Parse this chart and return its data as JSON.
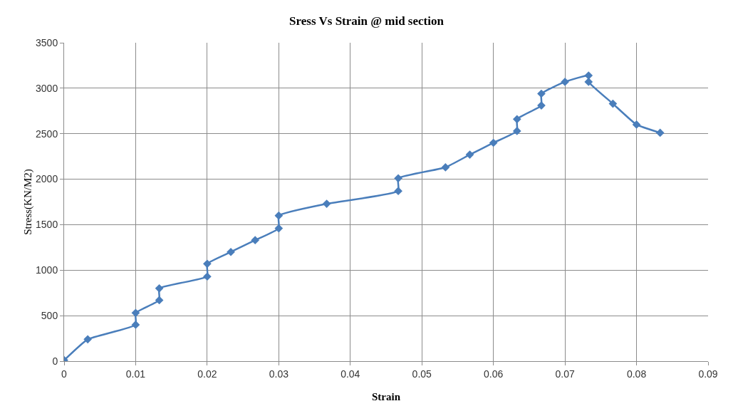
{
  "chart_data": {
    "type": "line",
    "title": "Sress Vs Strain @ mid section",
    "xlabel": "Strain",
    "ylabel": "Stress(KN/M2)",
    "x": [
      0,
      0.0033,
      0.01,
      0.01,
      0.0133,
      0.0133,
      0.02,
      0.02,
      0.0233,
      0.0267,
      0.03,
      0.03,
      0.0367,
      0.0467,
      0.0467,
      0.0533,
      0.0567,
      0.06,
      0.0633,
      0.0633,
      0.0667,
      0.0667,
      0.07,
      0.0733,
      0.0733,
      0.0767,
      0.08,
      0.0833
    ],
    "series": [
      {
        "color": "#4a7ebb",
        "values": [
          10,
          240,
          400,
          530,
          670,
          800,
          930,
          1070,
          1200,
          1330,
          1460,
          1600,
          1730,
          1870,
          2010,
          2130,
          2270,
          2400,
          2530,
          2660,
          2810,
          2940,
          3070,
          3140,
          3070,
          2830,
          2600,
          2510
        ]
      }
    ],
    "xlim": [
      0,
      0.09
    ],
    "xticks": [
      0,
      0.01,
      0.02,
      0.03,
      0.04,
      0.05,
      0.06,
      0.07,
      0.08,
      0.09
    ],
    "ylim": [
      0,
      3500
    ],
    "yticks": [
      0,
      500,
      1000,
      1500,
      2000,
      2500,
      3000,
      3500
    ],
    "grid": true,
    "legend": false,
    "marker": "diamond",
    "line_style": "solid"
  }
}
